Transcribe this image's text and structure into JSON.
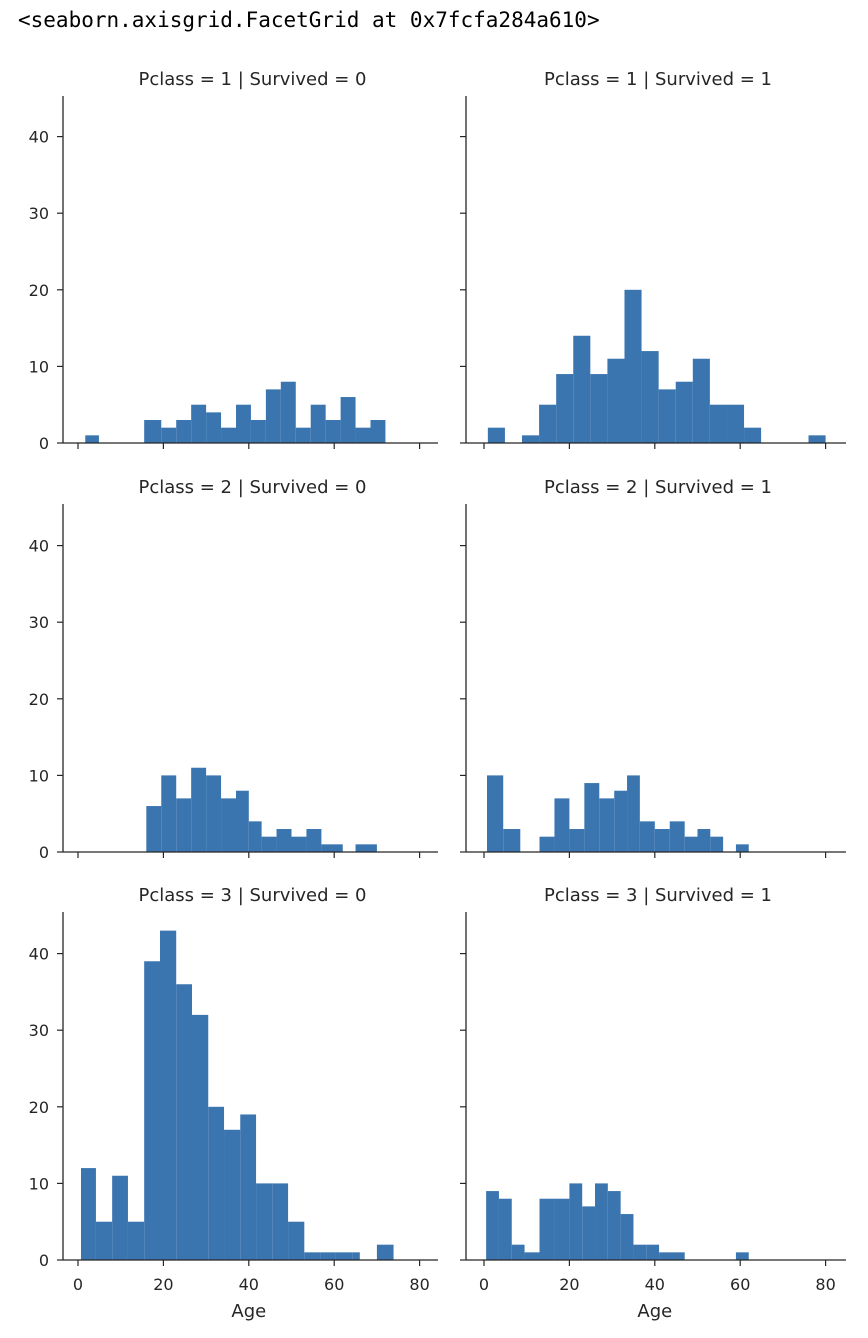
{
  "output_repr": "<seaborn.axisgrid.FacetGrid at 0x7fcfa284a610>",
  "colors": {
    "bar": "#3a75b0",
    "axis": "#262626",
    "background": "#ffffff"
  },
  "chart_data": {
    "type": "bar",
    "kind": "faceted-histogram",
    "rows": 3,
    "cols": 2,
    "xlim": [
      -5,
      84
    ],
    "ylim": [
      0,
      45
    ],
    "xticks": [
      0,
      20,
      40,
      60,
      80
    ],
    "yticks": [
      0,
      10,
      20,
      30,
      40
    ],
    "xlabel": "Age",
    "ylabel": "",
    "grid": false,
    "facets": [
      {
        "title": "Pclass = 1 | Survived = 0",
        "bins": [
          [
            1.7,
            4.9,
            1
          ],
          [
            15.5,
            19.5,
            3
          ],
          [
            19.5,
            23.0,
            2
          ],
          [
            23.0,
            26.5,
            3
          ],
          [
            26.5,
            30.0,
            5
          ],
          [
            30.0,
            33.5,
            4
          ],
          [
            33.5,
            37.0,
            2
          ],
          [
            37.0,
            40.5,
            5
          ],
          [
            40.5,
            44.0,
            3
          ],
          [
            44.0,
            47.5,
            7
          ],
          [
            47.5,
            51.0,
            8
          ],
          [
            51.0,
            54.5,
            2
          ],
          [
            54.5,
            58.0,
            5
          ],
          [
            58.0,
            61.5,
            3
          ],
          [
            61.5,
            65.0,
            6
          ],
          [
            65.0,
            68.5,
            2
          ],
          [
            68.5,
            72.0,
            3
          ]
        ]
      },
      {
        "title": "Pclass = 1 | Survived = 1",
        "bins": [
          [
            0.9,
            4.9,
            2
          ],
          [
            8.9,
            12.9,
            1
          ],
          [
            12.9,
            16.9,
            5
          ],
          [
            16.9,
            20.9,
            9
          ],
          [
            20.9,
            24.9,
            14
          ],
          [
            24.9,
            28.9,
            9
          ],
          [
            28.9,
            32.9,
            11
          ],
          [
            32.9,
            36.9,
            20
          ],
          [
            36.9,
            40.9,
            12
          ],
          [
            40.9,
            44.9,
            7
          ],
          [
            44.9,
            48.9,
            8
          ],
          [
            48.9,
            52.9,
            11
          ],
          [
            52.9,
            56.9,
            5
          ],
          [
            56.9,
            60.9,
            5
          ],
          [
            60.9,
            64.9,
            2
          ],
          [
            76.0,
            80.0,
            1
          ]
        ]
      },
      {
        "title": "Pclass = 2 | Survived = 0",
        "bins": [
          [
            16.0,
            19.5,
            6
          ],
          [
            19.5,
            23.0,
            10
          ],
          [
            23.0,
            26.5,
            7
          ],
          [
            26.5,
            30.0,
            11
          ],
          [
            30.0,
            33.5,
            10
          ],
          [
            33.5,
            37.0,
            7
          ],
          [
            37.0,
            40.0,
            8
          ],
          [
            40.0,
            43.0,
            4
          ],
          [
            43.0,
            46.5,
            2
          ],
          [
            46.5,
            50.0,
            3
          ],
          [
            50.0,
            53.5,
            2
          ],
          [
            53.5,
            57.0,
            3
          ],
          [
            57.0,
            62.0,
            1
          ],
          [
            65.0,
            70.0,
            1
          ]
        ]
      },
      {
        "title": "Pclass = 2 | Survived = 1",
        "bins": [
          [
            0.7,
            4.5,
            10
          ],
          [
            4.5,
            8.5,
            3
          ],
          [
            13.0,
            16.5,
            2
          ],
          [
            16.5,
            20.0,
            7
          ],
          [
            20.0,
            23.5,
            3
          ],
          [
            23.5,
            27.0,
            9
          ],
          [
            27.0,
            30.5,
            7
          ],
          [
            30.5,
            33.5,
            8
          ],
          [
            33.5,
            36.5,
            10
          ],
          [
            36.5,
            40.0,
            4
          ],
          [
            40.0,
            43.5,
            3
          ],
          [
            43.5,
            47.0,
            4
          ],
          [
            47.0,
            50.0,
            2
          ],
          [
            50.0,
            53.0,
            3
          ],
          [
            53.0,
            56.0,
            2
          ],
          [
            59.0,
            62.0,
            1
          ]
        ]
      },
      {
        "title": "Pclass = 3 | Survived = 0",
        "bins": [
          [
            0.7,
            4.2,
            12
          ],
          [
            4.2,
            8.0,
            5
          ],
          [
            8.0,
            11.7,
            11
          ],
          [
            11.7,
            15.5,
            5
          ],
          [
            15.5,
            19.2,
            39
          ],
          [
            19.2,
            23.0,
            43
          ],
          [
            23.0,
            26.7,
            36
          ],
          [
            26.7,
            30.5,
            32
          ],
          [
            30.5,
            34.2,
            20
          ],
          [
            34.2,
            38.0,
            17
          ],
          [
            38.0,
            41.7,
            19
          ],
          [
            41.7,
            45.5,
            10
          ],
          [
            45.5,
            49.2,
            10
          ],
          [
            49.2,
            53.0,
            5
          ],
          [
            53.0,
            56.7,
            1
          ],
          [
            56.7,
            60.4,
            1
          ],
          [
            60.4,
            64.2,
            1
          ],
          [
            64.2,
            66.0,
            1
          ],
          [
            70.0,
            73.9,
            2
          ]
        ]
      },
      {
        "title": "Pclass = 3 | Survived = 1",
        "bins": [
          [
            0.5,
            3.5,
            9
          ],
          [
            3.5,
            6.5,
            8
          ],
          [
            6.5,
            9.5,
            2
          ],
          [
            9.5,
            13.0,
            1
          ],
          [
            13.0,
            16.5,
            8
          ],
          [
            16.5,
            20.0,
            8
          ],
          [
            20.0,
            23.0,
            10
          ],
          [
            23.0,
            26.0,
            7
          ],
          [
            26.0,
            29.0,
            10
          ],
          [
            29.0,
            32.0,
            9
          ],
          [
            32.0,
            35.0,
            6
          ],
          [
            35.0,
            38.0,
            2
          ],
          [
            38.0,
            41.0,
            2
          ],
          [
            41.0,
            47.0,
            1
          ],
          [
            59.0,
            62.0,
            1
          ]
        ]
      }
    ]
  }
}
